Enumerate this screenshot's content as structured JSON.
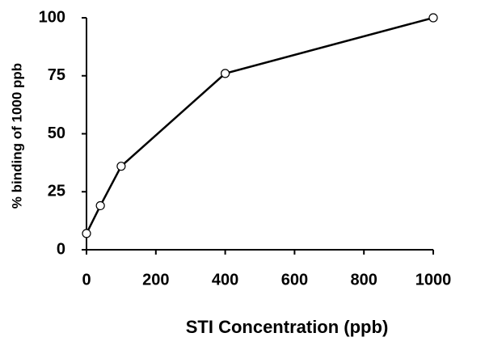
{
  "chart_data": {
    "type": "line",
    "x_label": "STI Concentration (ppb)",
    "y_label": "% binding of 1000 ppb",
    "x": [
      0,
      40,
      100,
      400,
      1000
    ],
    "values": [
      7,
      19,
      36,
      76,
      100
    ],
    "color": "#000000",
    "marker_fill": "#ffffff",
    "xlim": [
      0,
      1000
    ],
    "xticks": [
      0,
      200,
      400,
      600,
      800,
      1000
    ],
    "ylim": [
      0,
      100
    ],
    "yticks": [
      0,
      25,
      50,
      75,
      100
    ],
    "grid": false
  }
}
